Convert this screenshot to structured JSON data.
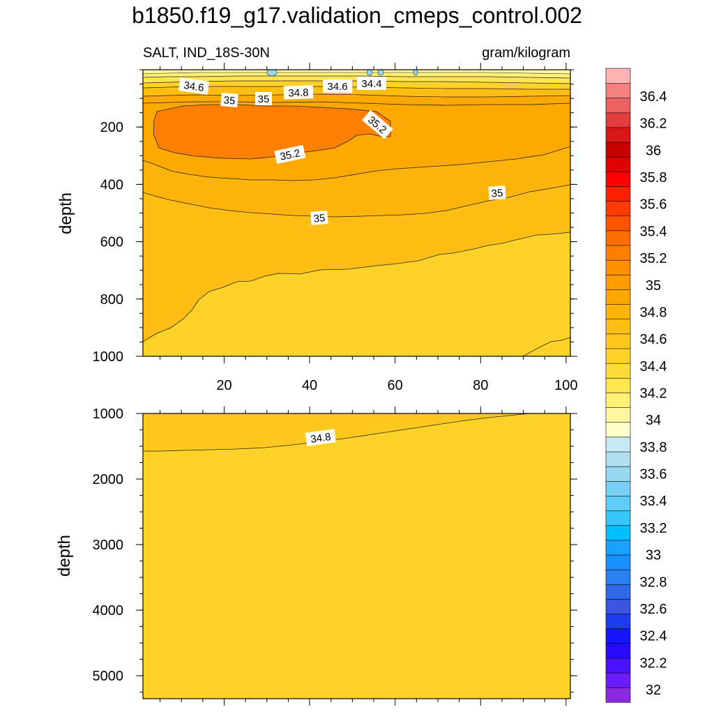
{
  "title": "b1850.f19_g17.validation_cmeps_control.002",
  "chart_data": {
    "type": "contour",
    "subtitle_left": "SALT, IND_18S-30N",
    "subtitle_right": "gram/kilogram",
    "xlim": [
      1,
      101
    ],
    "x_ticks": [
      20,
      40,
      60,
      80,
      100
    ],
    "colorbar": {
      "labels": [
        "32",
        "32.2",
        "32.4",
        "32.6",
        "32.8",
        "33",
        "33.2",
        "33.4",
        "33.6",
        "33.8",
        "34",
        "34.2",
        "34.4",
        "34.6",
        "34.8",
        "35",
        "35.2",
        "35.4",
        "35.6",
        "35.8",
        "36",
        "36.2",
        "36.4"
      ],
      "colors": [
        "#8a2be2",
        "#6a1eff",
        "#4b12ff",
        "#2a0aff",
        "#1414ff",
        "#1e3cf0",
        "#3a56e0",
        "#2e6ae8",
        "#2a80ee",
        "#1a90ff",
        "#1aa0ff",
        "#00bfff",
        "#38c8f8",
        "#60ccf8",
        "#78d0f4",
        "#98d8f0",
        "#b0e0f0",
        "#c8e8f4",
        "#ffffcc",
        "#fff7a0",
        "#fff078",
        "#ffe650",
        "#ffdc3c",
        "#ffd22a",
        "#ffc81e",
        "#ffbe14",
        "#ffb40a",
        "#ffa800",
        "#ff9c00",
        "#ff9000",
        "#ff8000",
        "#ff6c00",
        "#ff5500",
        "#ff3c00",
        "#ff2000",
        "#ff0000",
        "#e00000",
        "#c80000",
        "#d81818",
        "#e23c3c",
        "#ec6060",
        "#f48080",
        "#ffb2b2"
      ]
    },
    "panels": [
      {
        "name": "upper",
        "ylabel": "depth",
        "ylim": [
          0,
          1000
        ],
        "y_ticks": [
          200,
          400,
          600,
          800,
          1000
        ],
        "contour_labels": [
          "34.6",
          "35",
          "35",
          "34.8",
          "34.6",
          "34.4",
          "35.2",
          "35.2",
          "35",
          "35"
        ]
      },
      {
        "name": "lower",
        "ylabel": "depth",
        "ylim": [
          1000,
          5350
        ],
        "y_ticks": [
          1000,
          2000,
          3000,
          4000,
          5000
        ],
        "contour_labels": [
          "34.8"
        ]
      }
    ]
  }
}
